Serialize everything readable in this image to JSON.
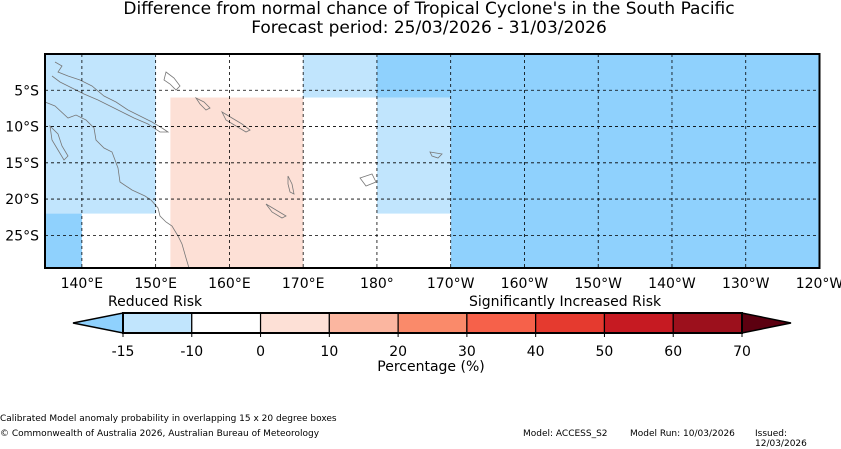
{
  "title": {
    "line1": "Difference from normal chance of Tropical Cyclone's in the South Pacific",
    "line2": "Forecast period: 25/03/2026 - 31/03/2026"
  },
  "map": {
    "lat_labels": [
      "5°S",
      "10°S",
      "15°S",
      "20°S",
      "25°S"
    ],
    "lon_labels": [
      "140°E",
      "150°E",
      "160°E",
      "170°E",
      "180°",
      "170°W",
      "160°W",
      "150°W",
      "140°W",
      "130°W",
      "120°W"
    ],
    "lon_range_deg": [
      135,
      240
    ],
    "lat_range_deg": [
      0,
      -29.5
    ],
    "colors": {
      "strong_blue": "#8fd1fd",
      "light_blue": "#c1e5fd",
      "light_red": "#fde0d6",
      "land_outline": "#777777"
    },
    "anomaly_boxes": [
      {
        "lon": [
          135,
          150
        ],
        "lat": [
          0,
          -22
        ],
        "category": "light_blue"
      },
      {
        "lon": [
          135,
          140
        ],
        "lat": [
          -22,
          -29.5
        ],
        "category": "strong_blue"
      },
      {
        "lon": [
          152,
          170
        ],
        "lat": [
          -6,
          -29.5
        ],
        "category": "light_red"
      },
      {
        "lon": [
          170,
          180
        ],
        "lat": [
          0,
          -6
        ],
        "category": "light_blue"
      },
      {
        "lon": [
          180,
          190
        ],
        "lat": [
          0,
          -6
        ],
        "category": "strong_blue"
      },
      {
        "lon": [
          180,
          190
        ],
        "lat": [
          -6,
          -22
        ],
        "category": "light_blue"
      },
      {
        "lon": [
          190,
          240
        ],
        "lat": [
          0,
          -29.5
        ],
        "category": "strong_blue"
      }
    ]
  },
  "legend": {
    "reduced_label": "Reduced Risk",
    "increased_label": "Significantly Increased Risk",
    "tick_labels": [
      "-15",
      "-10",
      "0",
      "10",
      "20",
      "30",
      "40",
      "50",
      "60",
      "70"
    ],
    "axis_label": "Percentage (%)",
    "under_color": "#8fd1fd",
    "over_color": "#5c0010",
    "bins": [
      {
        "range": "-15 to -10",
        "color": "#c1e5fd"
      },
      {
        "range": "-10 to 0",
        "color": "#ffffff"
      },
      {
        "range": "0 to 10",
        "color": "#fde0d6"
      },
      {
        "range": "10 to 20",
        "color": "#fbb6a0"
      },
      {
        "range": "20 to 30",
        "color": "#fa8a6a"
      },
      {
        "range": "30 to 40",
        "color": "#f6614a"
      },
      {
        "range": "40 to 50",
        "color": "#e53a2f"
      },
      {
        "range": "50 to 60",
        "color": "#c61a22"
      },
      {
        "range": "60 to 70",
        "color": "#9c101c"
      }
    ]
  },
  "footer": {
    "note": "Calibrated Model anomaly probability in overlapping 15 x 20 degree boxes",
    "copyright": "© Commonwealth of Australia 2026, Australian Bureau of Meteorology",
    "model": "Model: ACCESS_S2",
    "model_run": "Model Run: 10/03/2026",
    "issued": "Issued: 12/03/2026"
  }
}
